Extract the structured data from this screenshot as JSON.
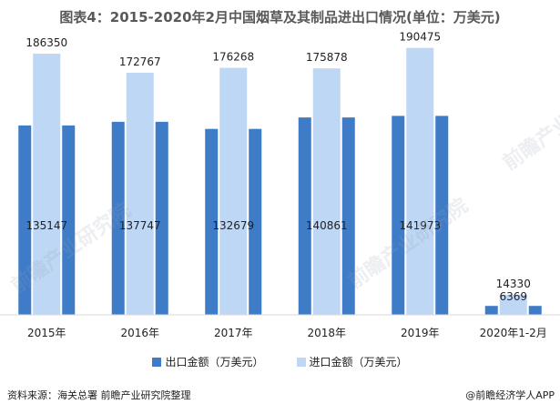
{
  "title": "图表4：2015-2020年2月中国烟草及其制品进出口情况(单位：万美元)",
  "colors": {
    "export": "#3F7CC8",
    "import": "#BDD7F5"
  },
  "chart_data": {
    "type": "bar",
    "categories": [
      "2015年",
      "2016年",
      "2017年",
      "2018年",
      "2019年",
      "2020年1-2月"
    ],
    "series": [
      {
        "name": "出口金额（万美元）",
        "values": [
          135147,
          137747,
          132679,
          140861,
          141973,
          6369
        ]
      },
      {
        "name": "进口金额（万美元）",
        "values": [
          186350,
          172767,
          176268,
          175878,
          190475,
          14330
        ]
      }
    ],
    "ylim": [
      0,
      200000
    ],
    "legend_position": "bottom",
    "grid": false
  },
  "legend": {
    "export_label": "出口金额（万美元）",
    "import_label": "进口金额（万美元）"
  },
  "footer": {
    "source": "资料来源：海关总署 前瞻产业研究院整理",
    "brand": "@前瞻经济学人APP"
  },
  "watermark": "前瞻产业研究院"
}
